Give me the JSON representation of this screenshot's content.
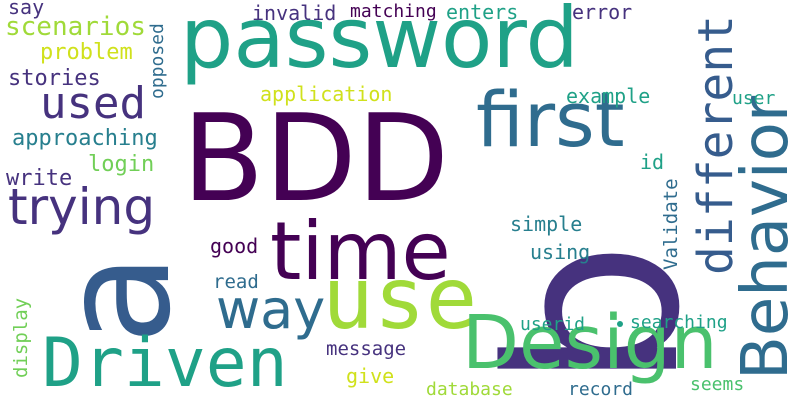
{
  "words": {
    "bdd": "BDD",
    "b_big": "b",
    "a_big": "a",
    "password": "password",
    "time": "time",
    "use": "use",
    "driven": "Driven",
    "design": "Design",
    "behavior": "Behavior",
    "different": "different",
    "first": "first",
    "trying": "trying",
    "used": "used",
    "way": "way",
    "say": "say",
    "scenarios": "scenarios",
    "problem": "problem",
    "stories": "stories",
    "approaching": "approaching",
    "login": "login",
    "write": "write",
    "opposed": "opposed",
    "invalid": "invalid",
    "matching": "matching",
    "enters": "enters",
    "error": "error",
    "application": "application",
    "example": "example",
    "user": "user",
    "id": "id",
    "validate": "Validate",
    "simple": "simple",
    "using": "using",
    "good": "good",
    "read": "read",
    "display": "display",
    "message": "message",
    "give": "give",
    "database": "database",
    "record": "record",
    "seems": "seems",
    "userid": "userid",
    "searching": "searching"
  },
  "colors": {
    "dark_purple": "#440154",
    "indigo": "#46327e",
    "blue": "#365c8d",
    "steel_blue": "#2f6c8e",
    "teal": "#277f8e",
    "green_teal": "#1fa187",
    "green": "#4ac16d",
    "light_green": "#71cf57",
    "yellow_green": "#a0da39",
    "yellow": "#d0e11c"
  }
}
